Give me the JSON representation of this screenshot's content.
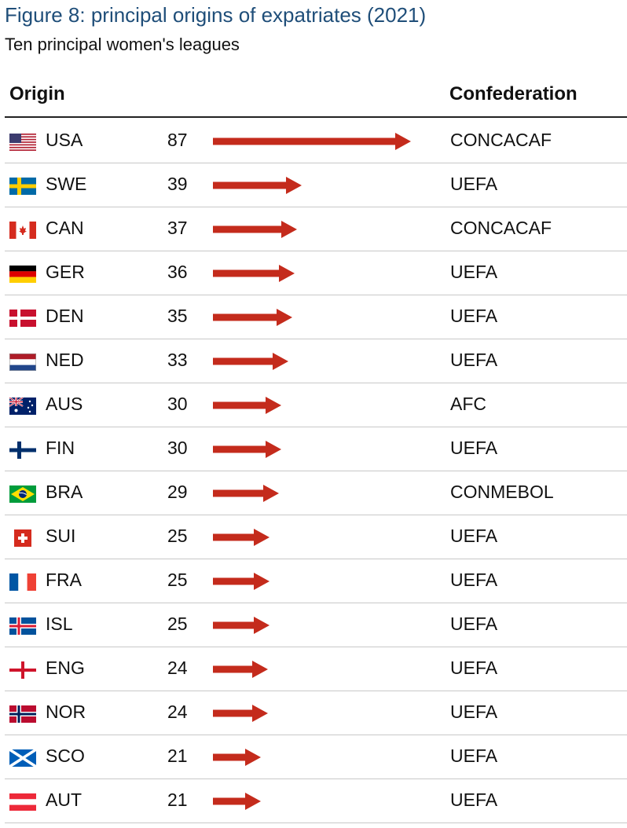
{
  "title": "Figure 8: principal origins of expatriates (2021)",
  "subtitle": "Ten principal women's leagues",
  "headers": {
    "origin": "Origin",
    "confederation": "Confederation"
  },
  "colors": {
    "title": "#1f4e79",
    "arrow": "#c42b1c"
  },
  "chart_data": {
    "type": "bar",
    "title": "Figure 8: principal origins of expatriates (2021)",
    "subtitle": "Ten principal women's leagues",
    "categories": [
      "USA",
      "SWE",
      "CAN",
      "GER",
      "DEN",
      "NED",
      "AUS",
      "FIN",
      "BRA",
      "SUI",
      "FRA",
      "ISL",
      "ENG",
      "NOR",
      "SCO",
      "AUT"
    ],
    "values": [
      87,
      39,
      37,
      36,
      35,
      33,
      30,
      30,
      29,
      25,
      25,
      25,
      24,
      24,
      21,
      21
    ],
    "confederations": [
      "CONCACAF",
      "UEFA",
      "CONCACAF",
      "UEFA",
      "UEFA",
      "UEFA",
      "AFC",
      "UEFA",
      "CONMEBOL",
      "UEFA",
      "UEFA",
      "UEFA",
      "UEFA",
      "UEFA",
      "UEFA",
      "UEFA"
    ],
    "flag_icons": [
      "usa-flag-icon",
      "sweden-flag-icon",
      "canada-flag-icon",
      "germany-flag-icon",
      "denmark-flag-icon",
      "netherlands-flag-icon",
      "australia-flag-icon",
      "finland-flag-icon",
      "brazil-flag-icon",
      "switzerland-flag-icon",
      "france-flag-icon",
      "iceland-flag-icon",
      "england-flag-icon",
      "norway-flag-icon",
      "scotland-flag-icon",
      "austria-flag-icon"
    ],
    "orientation": "horizontal",
    "xlim": [
      0,
      87
    ]
  }
}
